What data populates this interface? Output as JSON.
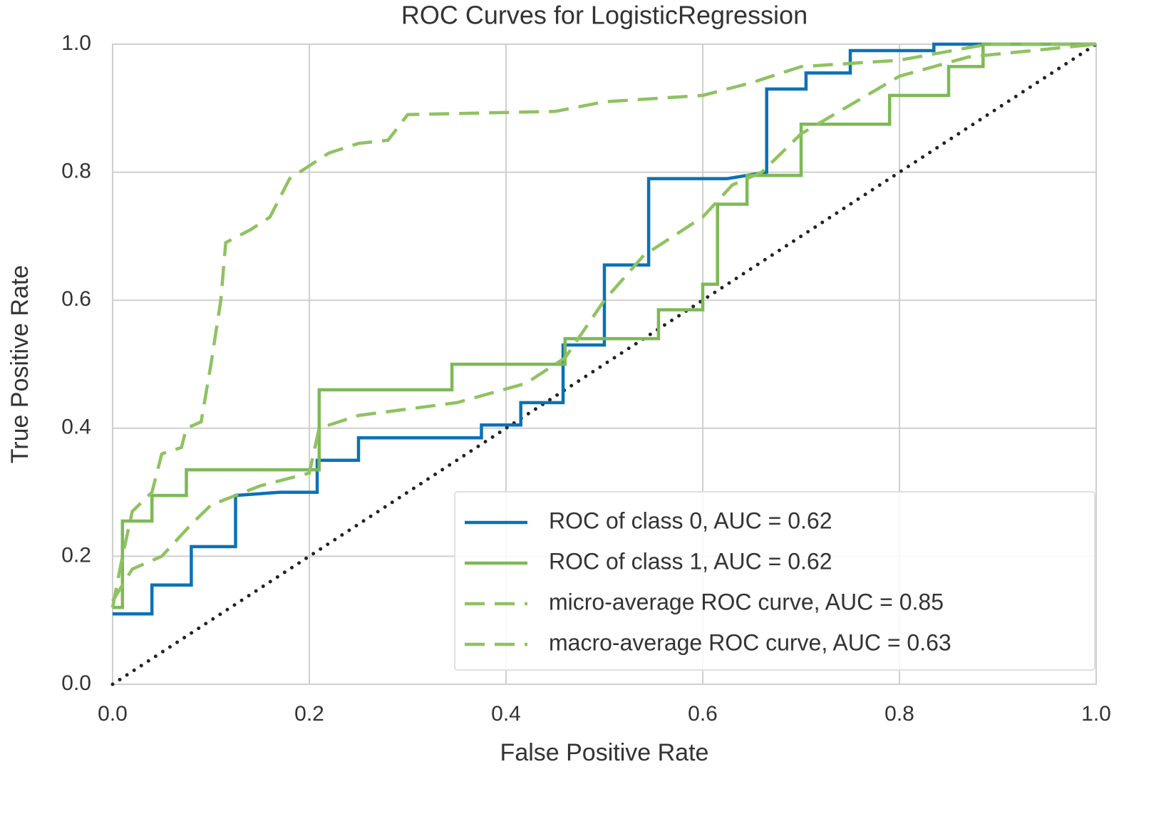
{
  "chart_data": {
    "type": "line",
    "title": "ROC Curves for LogisticRegression",
    "x_label": "False Positive Rate",
    "y_label": "True Positive Rate",
    "xlim": [
      0,
      1
    ],
    "ylim": [
      0,
      1
    ],
    "xticks": [
      {
        "value": 0,
        "label": "0.0"
      },
      0.2,
      0.4,
      0.6,
      0.8,
      {
        "value": 1,
        "label": "1.0"
      }
    ],
    "yticks": [
      {
        "value": 0,
        "label": "0.0"
      },
      0.2,
      0.4,
      0.6,
      0.8,
      {
        "value": 1,
        "label": "1.0"
      }
    ],
    "grid": true,
    "legend": "lower right",
    "series": [
      {
        "name": "ROC of class 0, AUC = 0.62",
        "color": "#0b72b5",
        "linestyle": "solid",
        "x": [
          0,
          0.04,
          0.04,
          0.08,
          0.08,
          0.125,
          0.125,
          0.17,
          0.208,
          0.208,
          0.25,
          0.25,
          0.375,
          0.375,
          0.4,
          0.415,
          0.415,
          0.45,
          0.458,
          0.458,
          0.5,
          0.5,
          0.545,
          0.545,
          0.625,
          0.665,
          0.665,
          0.705,
          0.705,
          0.75,
          0.75,
          0.835,
          0.835,
          1.0
        ],
        "values": [
          0.11,
          0.11,
          0.155,
          0.155,
          0.215,
          0.215,
          0.295,
          0.3,
          0.3,
          0.35,
          0.35,
          0.385,
          0.385,
          0.405,
          0.405,
          0.405,
          0.44,
          0.44,
          0.44,
          0.53,
          0.53,
          0.655,
          0.655,
          0.79,
          0.79,
          0.8,
          0.93,
          0.93,
          0.955,
          0.955,
          0.99,
          0.99,
          1.0,
          1.0
        ]
      },
      {
        "name": "ROC of class 1, AUC = 0.62",
        "color": "#7db955",
        "linestyle": "solid",
        "x": [
          0,
          0.01,
          0.01,
          0.04,
          0.04,
          0.075,
          0.075,
          0.21,
          0.21,
          0.345,
          0.345,
          0.46,
          0.46,
          0.555,
          0.555,
          0.6,
          0.6,
          0.615,
          0.615,
          0.645,
          0.645,
          0.7,
          0.7,
          0.79,
          0.79,
          0.85,
          0.85,
          0.885,
          0.885,
          1.0
        ],
        "values": [
          0.12,
          0.12,
          0.255,
          0.255,
          0.295,
          0.295,
          0.335,
          0.335,
          0.46,
          0.46,
          0.5,
          0.5,
          0.54,
          0.54,
          0.585,
          0.585,
          0.625,
          0.625,
          0.75,
          0.75,
          0.795,
          0.795,
          0.875,
          0.875,
          0.92,
          0.92,
          0.965,
          0.965,
          1.0,
          1.0
        ]
      },
      {
        "name": "micro-average ROC curve, AUC = 0.85",
        "color": "#8fc260",
        "linestyle": "dashed",
        "x": [
          0,
          0.01,
          0.02,
          0.04,
          0.05,
          0.07,
          0.075,
          0.09,
          0.1,
          0.11,
          0.115,
          0.14,
          0.16,
          0.18,
          0.2,
          0.22,
          0.25,
          0.28,
          0.3,
          0.45,
          0.5,
          0.6,
          0.65,
          0.7,
          0.8,
          0.89,
          1.0
        ],
        "values": [
          0.12,
          0.2,
          0.27,
          0.3,
          0.36,
          0.37,
          0.4,
          0.41,
          0.5,
          0.6,
          0.69,
          0.71,
          0.73,
          0.79,
          0.81,
          0.83,
          0.845,
          0.85,
          0.89,
          0.895,
          0.91,
          0.92,
          0.94,
          0.965,
          0.975,
          1.0,
          1.0
        ]
      },
      {
        "name": "macro-average ROC curve, AUC = 0.63",
        "color": "#8fc260",
        "linestyle": "dashed",
        "x": [
          0,
          0.02,
          0.05,
          0.08,
          0.1,
          0.15,
          0.2,
          0.21,
          0.25,
          0.35,
          0.42,
          0.46,
          0.5,
          0.54,
          0.6,
          0.63,
          0.66,
          0.7,
          0.8,
          0.87,
          1.0
        ],
        "values": [
          0.13,
          0.18,
          0.2,
          0.25,
          0.28,
          0.31,
          0.33,
          0.4,
          0.42,
          0.44,
          0.47,
          0.51,
          0.6,
          0.67,
          0.73,
          0.78,
          0.8,
          0.86,
          0.95,
          0.98,
          1.0
        ]
      }
    ]
  }
}
